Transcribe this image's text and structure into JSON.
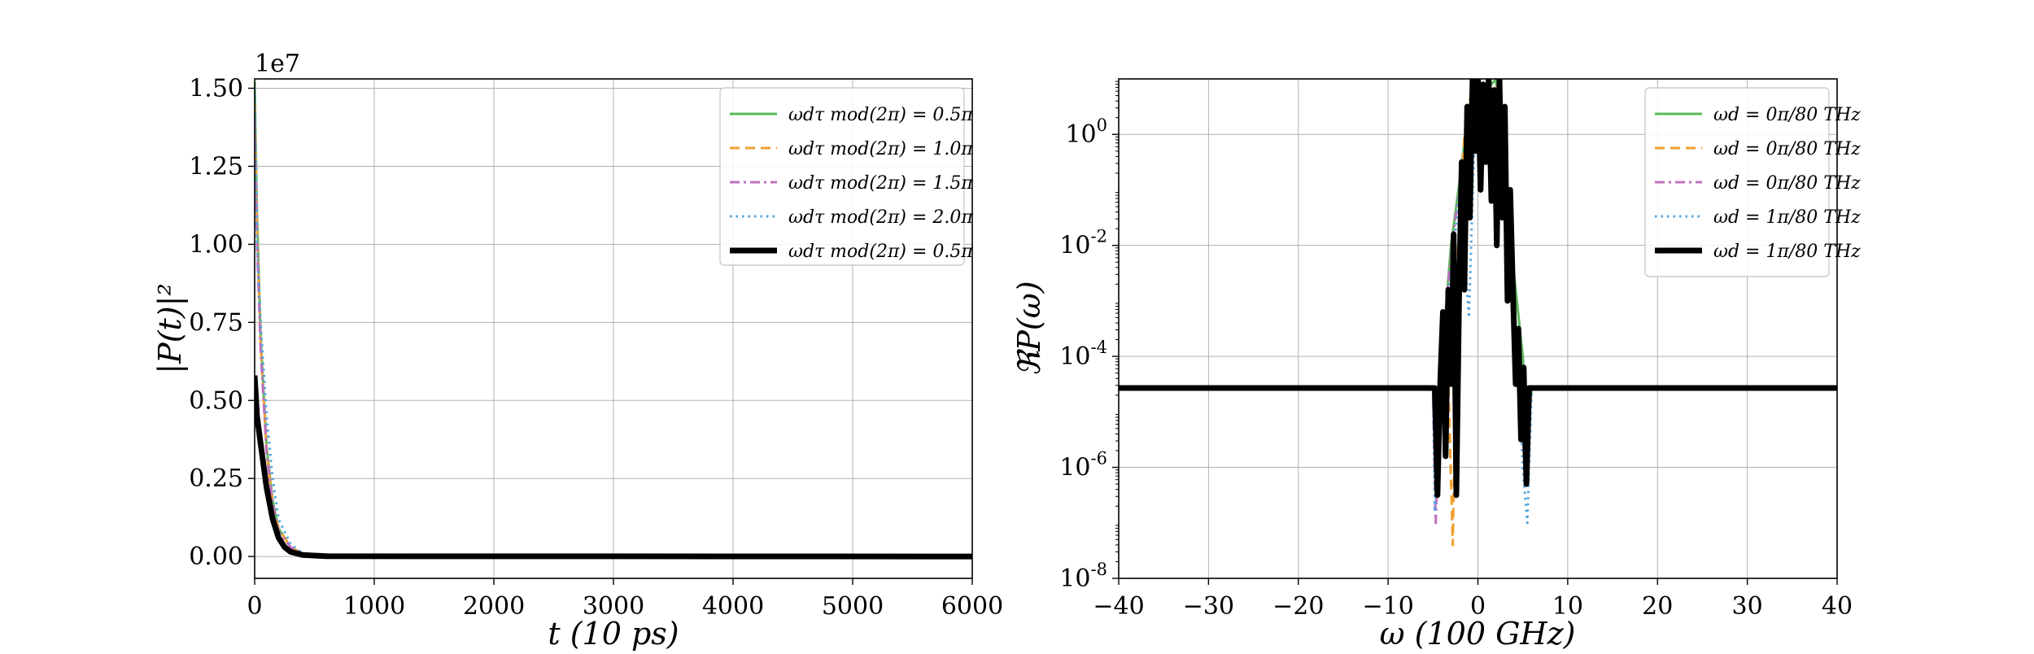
{
  "chart_data": [
    {
      "type": "line",
      "xlabel": "t (10 ps)",
      "ylabel": "|P(t)|²",
      "offset_text": "1e7",
      "xlim": [
        0,
        6000
      ],
      "ylim": [
        -0.07,
        1.53
      ],
      "y_scale_factor": 10000000,
      "xticks": [
        0,
        1000,
        2000,
        3000,
        4000,
        5000,
        6000
      ],
      "xtick_labels": [
        "0",
        "1000",
        "2000",
        "3000",
        "4000",
        "5000",
        "6000"
      ],
      "yticks": [
        0.0,
        0.25,
        0.5,
        0.75,
        1.0,
        1.25,
        1.5
      ],
      "ytick_labels": [
        "0.00",
        "0.25",
        "0.50",
        "0.75",
        "1.00",
        "1.25",
        "1.50"
      ],
      "grid": true,
      "legend_position": "top-right",
      "series": [
        {
          "name": "ωdτ mod(2π) = 0.5π",
          "color": "#5cb85c",
          "style": "solid",
          "x": [
            0,
            20,
            50,
            100,
            150,
            200,
            300,
            400,
            600,
            6000
          ],
          "y": [
            1.52,
            1.1,
            0.7,
            0.35,
            0.18,
            0.09,
            0.03,
            0.01,
            0.002,
            0.0
          ]
        },
        {
          "name": "ωdτ mod(2π) = 1.0π",
          "color": "#f0a030",
          "style": "dashed",
          "x": [
            0,
            20,
            50,
            100,
            150,
            200,
            300,
            400,
            600,
            6000
          ],
          "y": [
            1.45,
            1.05,
            0.68,
            0.34,
            0.17,
            0.09,
            0.03,
            0.01,
            0.002,
            0.0
          ]
        },
        {
          "name": "ωdτ mod(2π) = 1.5π",
          "color": "#c070c0",
          "style": "dashdot",
          "x": [
            0,
            20,
            50,
            100,
            150,
            200,
            300,
            400,
            600,
            6000
          ],
          "y": [
            1.4,
            1.0,
            0.66,
            0.33,
            0.17,
            0.08,
            0.03,
            0.01,
            0.002,
            0.0
          ]
        },
        {
          "name": "ωdτ mod(2π) = 2.0π",
          "color": "#4fa3e0",
          "style": "dotted",
          "x": [
            0,
            20,
            50,
            100,
            150,
            200,
            300,
            400,
            600,
            6000
          ],
          "y": [
            1.5,
            1.0,
            0.75,
            0.45,
            0.25,
            0.12,
            0.04,
            0.01,
            0.002,
            0.0
          ]
        },
        {
          "name": "ωdτ mod(2π) = 0.5π",
          "color": "#000000",
          "style": "solid-thick",
          "x": [
            0,
            20,
            50,
            100,
            150,
            200,
            250,
            300,
            400,
            600,
            6000
          ],
          "y": [
            0.58,
            0.45,
            0.36,
            0.22,
            0.12,
            0.06,
            0.03,
            0.015,
            0.005,
            0.001,
            0.0
          ]
        }
      ]
    },
    {
      "type": "line",
      "xlabel": "ω (100 GHz)",
      "ylabel": "ℜP(ω)",
      "xlim": [
        -40,
        40
      ],
      "ylim_log10": [
        -8,
        1.0
      ],
      "yscale": "log",
      "xticks": [
        -40,
        -30,
        -20,
        -10,
        0,
        10,
        20,
        30,
        40
      ],
      "xtick_labels": [
        "−40",
        "−30",
        "−20",
        "−10",
        "0",
        "10",
        "20",
        "30",
        "40"
      ],
      "ytick_exponents": [
        0,
        -2,
        -4,
        -6,
        -8
      ],
      "grid": true,
      "legend_position": "top-right",
      "series": [
        {
          "name": "ωd = 0π/80 THz",
          "color": "#5cb85c",
          "style": "solid",
          "x": [
            -40,
            -5,
            -4.5,
            -4,
            -3.5,
            -3,
            -2,
            -1,
            0,
            1,
            2,
            3,
            4,
            5,
            5.5,
            6,
            40
          ],
          "y_log10": [
            -4.57,
            -4.57,
            -6.0,
            -4.2,
            -3.0,
            -2.0,
            -0.8,
            0.5,
            1.0,
            0.8,
            1.0,
            -1.0,
            -2.5,
            -4.0,
            -5.5,
            -4.57,
            -4.57
          ]
        },
        {
          "name": "ωd = 0π/80 THz",
          "color": "#f0a030",
          "style": "dashed",
          "x": [
            -40,
            -5,
            -4.6,
            -4.2,
            -3.5,
            -2.8,
            -2.2,
            -1.5,
            -0.5,
            0.5,
            1.5,
            2.5,
            3.5,
            4.5,
            5.2,
            6,
            40
          ],
          "y_log10": [
            -4.57,
            -4.57,
            -6.5,
            -4.8,
            -3.2,
            -7.4,
            -2.0,
            0.0,
            1.0,
            0.9,
            0.6,
            1.0,
            -2.0,
            -4.2,
            -6.0,
            -4.57,
            -4.57
          ]
        },
        {
          "name": "ωd = 0π/80 THz",
          "color": "#c070c0",
          "style": "dashdot",
          "x": [
            -40,
            -5,
            -4.7,
            -4.3,
            -3.8,
            -3.2,
            -2.5,
            -1.5,
            -0.5,
            0.5,
            1.5,
            2.5,
            3.5,
            4.5,
            5.2,
            6,
            40
          ],
          "y_log10": [
            -4.57,
            -4.57,
            -7.0,
            -5.0,
            -3.5,
            -2.5,
            -1.5,
            -0.5,
            1.0,
            0.8,
            0.5,
            1.0,
            -2.2,
            -4.3,
            -6.0,
            -4.57,
            -4.57
          ]
        },
        {
          "name": "ωd = 1π/80 THz",
          "color": "#4fa3e0",
          "style": "dotted",
          "x": [
            -40,
            -5,
            -4.8,
            -4.3,
            -3.8,
            -3.0,
            -2.0,
            -1.0,
            -0.2,
            0.5,
            1.5,
            2.5,
            3.5,
            4.5,
            5.0,
            5.5,
            6,
            40
          ],
          "y_log10": [
            -4.57,
            -4.57,
            -6.8,
            -5.2,
            -3.8,
            -2.5,
            -1.0,
            -3.3,
            1.0,
            0.8,
            0.6,
            1.0,
            -2.0,
            -4.0,
            -6.0,
            -7.0,
            -4.57,
            -4.57
          ]
        },
        {
          "name": "ωd = 1π/80 THz",
          "color": "#000000",
          "style": "solid-thick",
          "x": [
            -40,
            -4.8,
            -4.5,
            -4.2,
            -3.9,
            -3.6,
            -3.3,
            -3.0,
            -2.7,
            -2.4,
            -2.1,
            -1.8,
            -1.5,
            -1.2,
            -0.9,
            -0.6,
            -0.3,
            0.0,
            0.3,
            0.6,
            0.9,
            1.2,
            1.5,
            1.8,
            2.1,
            2.4,
            2.7,
            3.0,
            3.3,
            3.6,
            3.9,
            4.2,
            4.5,
            4.8,
            5.1,
            5.4,
            5.7,
            6.0,
            40
          ],
          "y_log10": [
            -4.57,
            -4.57,
            -6.5,
            -4.5,
            -3.2,
            -5.8,
            -2.8,
            -4.5,
            -1.8,
            -6.5,
            -3.0,
            -0.5,
            -2.8,
            0.5,
            -1.5,
            1.0,
            -0.3,
            1.0,
            -1.0,
            0.9,
            -0.5,
            1.0,
            -1.2,
            0.8,
            -2.0,
            1.0,
            -1.5,
            0.5,
            -3.0,
            -1.0,
            -2.8,
            -4.5,
            -3.5,
            -5.5,
            -4.2,
            -6.3,
            -4.57,
            -4.57,
            -4.57
          ]
        }
      ]
    }
  ]
}
